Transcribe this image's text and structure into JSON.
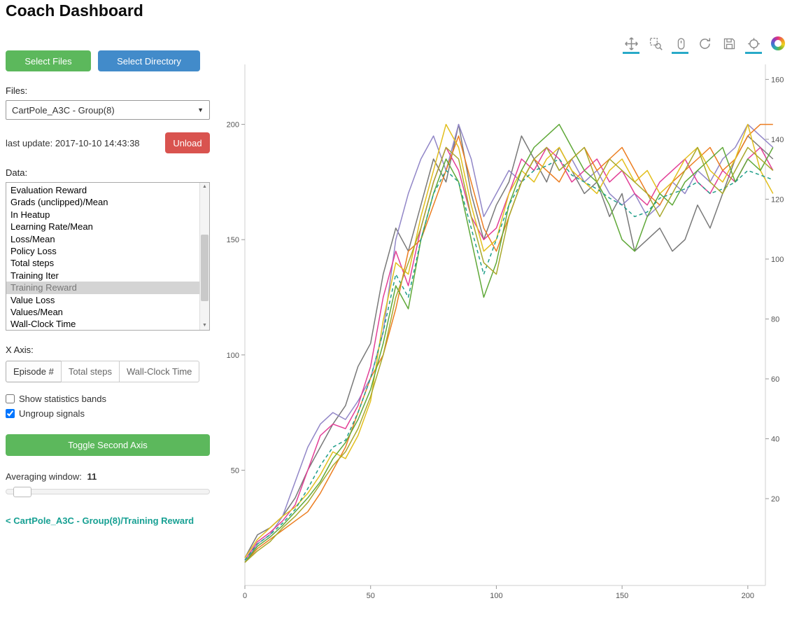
{
  "page": {
    "title": "Coach Dashboard"
  },
  "colors": {
    "green_button": "#5cb85c",
    "blue_button": "#428bca",
    "red_button": "#d9534f",
    "link_teal": "#17a093",
    "toolbar_active_underline": "#29aac8"
  },
  "sidebar": {
    "select_files_label": "Select Files",
    "select_directory_label": "Select Directory",
    "files_label": "Files:",
    "files_dropdown_value": "CartPole_A3C - Group(8)",
    "last_update_label": "last update: 2017-10-10 14:43:38",
    "unload_label": "Unload",
    "data_label": "Data:",
    "data_items": [
      "Evaluation Reward",
      "Grads (unclipped)/Mean",
      "In Heatup",
      "Learning Rate/Mean",
      "Loss/Mean",
      "Policy Loss",
      "Total steps",
      "Training Iter",
      "Training Reward",
      "Value Loss",
      "Values/Mean",
      "Wall-Clock Time"
    ],
    "selected_data_item": "Training Reward",
    "x_axis_label": "X Axis:",
    "x_axis_options": [
      "Episode #",
      "Total steps",
      "Wall-Clock Time"
    ],
    "x_axis_selected": "Episode #",
    "checkbox_stats_label": "Show statistics bands",
    "checkbox_stats_checked": false,
    "checkbox_ungroup_label": "Ungroup signals",
    "checkbox_ungroup_checked": true,
    "toggle_second_axis_label": "Toggle Second Axis",
    "averaging_window_label": "Averaging window:",
    "averaging_window_value": "11",
    "breadcrumb": "< CartPole_A3C - Group(8)/Training Reward"
  },
  "toolbar": {
    "tools": [
      {
        "name": "pan-tool",
        "active": true
      },
      {
        "name": "box-zoom-tool",
        "active": false
      },
      {
        "name": "wheel-zoom-tool",
        "active": true
      },
      {
        "name": "reset-tool",
        "active": false
      },
      {
        "name": "save-tool",
        "active": false
      },
      {
        "name": "hover-tool",
        "active": true
      },
      {
        "name": "bokeh-logo",
        "active": false
      }
    ]
  },
  "chart_data": {
    "type": "line",
    "title": "",
    "xlabel": "",
    "ylabel": "",
    "legend": "none",
    "grid": false,
    "xlim": [
      0,
      207
    ],
    "ylim": [
      0,
      226
    ],
    "y2lim": [
      -9,
      165
    ],
    "xticks": [
      0,
      50,
      100,
      150,
      200
    ],
    "yticks_left": [
      50,
      100,
      150,
      200
    ],
    "yticks_right": [
      20,
      40,
      60,
      80,
      100,
      120,
      140,
      160
    ],
    "x": [
      0,
      5,
      10,
      15,
      20,
      25,
      30,
      35,
      40,
      45,
      50,
      55,
      60,
      65,
      70,
      75,
      80,
      85,
      90,
      95,
      100,
      105,
      110,
      115,
      120,
      125,
      130,
      135,
      140,
      145,
      150,
      155,
      160,
      165,
      170,
      175,
      180,
      185,
      190,
      195,
      200,
      205,
      210
    ],
    "series": [
      {
        "name": "gray-line",
        "color": "#787878",
        "dash": false,
        "values": [
          12,
          22,
          25,
          30,
          38,
          50,
          60,
          70,
          78,
          95,
          105,
          135,
          155,
          145,
          165,
          185,
          175,
          200,
          170,
          150,
          165,
          175,
          195,
          185,
          175,
          190,
          180,
          170,
          175,
          160,
          170,
          145,
          150,
          155,
          145,
          150,
          165,
          155,
          170,
          185,
          195,
          190,
          185
        ]
      },
      {
        "name": "purple-line",
        "color": "#9186c7",
        "dash": false,
        "values": [
          10,
          18,
          22,
          30,
          45,
          60,
          70,
          75,
          72,
          80,
          90,
          110,
          150,
          170,
          185,
          195,
          180,
          200,
          185,
          160,
          170,
          180,
          175,
          185,
          190,
          180,
          185,
          175,
          180,
          170,
          165,
          170,
          160,
          165,
          175,
          170,
          180,
          175,
          185,
          190,
          200,
          195,
          190
        ]
      },
      {
        "name": "magenta-line",
        "color": "#e23e96",
        "dash": false,
        "values": [
          11,
          19,
          23,
          28,
          35,
          50,
          65,
          70,
          68,
          78,
          95,
          125,
          145,
          130,
          155,
          175,
          190,
          180,
          160,
          150,
          155,
          170,
          185,
          180,
          190,
          185,
          175,
          180,
          185,
          175,
          180,
          170,
          165,
          175,
          180,
          185,
          175,
          170,
          180,
          175,
          185,
          190,
          180
        ]
      },
      {
        "name": "orange-line",
        "color": "#ec7d20",
        "dash": false,
        "values": [
          10,
          16,
          20,
          24,
          28,
          32,
          40,
          50,
          60,
          75,
          90,
          100,
          120,
          145,
          150,
          165,
          180,
          195,
          175,
          155,
          145,
          160,
          175,
          185,
          180,
          175,
          185,
          190,
          180,
          185,
          190,
          180,
          170,
          165,
          175,
          180,
          185,
          190,
          180,
          185,
          195,
          200,
          200
        ]
      },
      {
        "name": "yellow-line",
        "color": "#e2bf1d",
        "dash": false,
        "values": [
          12,
          20,
          25,
          30,
          34,
          40,
          48,
          58,
          55,
          65,
          80,
          115,
          140,
          135,
          160,
          180,
          200,
          190,
          165,
          145,
          150,
          170,
          180,
          175,
          185,
          190,
          180,
          175,
          170,
          180,
          185,
          175,
          180,
          170,
          175,
          185,
          190,
          180,
          175,
          185,
          200,
          180,
          170
        ]
      },
      {
        "name": "green-line",
        "color": "#5fa838",
        "dash": false,
        "values": [
          10,
          17,
          21,
          26,
          32,
          38,
          45,
          55,
          62,
          72,
          85,
          105,
          130,
          120,
          150,
          170,
          185,
          175,
          150,
          125,
          140,
          165,
          180,
          190,
          195,
          200,
          190,
          180,
          175,
          165,
          150,
          145,
          160,
          170,
          165,
          175,
          180,
          185,
          190,
          175,
          185,
          180,
          190
        ]
      },
      {
        "name": "teal-dashed-line",
        "color": "#1f9e89",
        "dash": true,
        "values": [
          11,
          18,
          22,
          27,
          33,
          42,
          52,
          60,
          63,
          75,
          90,
          110,
          135,
          125,
          150,
          170,
          180,
          175,
          155,
          135,
          150,
          165,
          175,
          180,
          182,
          185,
          178,
          175,
          172,
          168,
          165,
          160,
          162,
          168,
          170,
          172,
          175,
          170,
          172,
          175,
          180,
          178,
          176
        ]
      },
      {
        "name": "olive-line",
        "color": "#a8a82c",
        "dash": false,
        "values": [
          10,
          15,
          19,
          25,
          30,
          36,
          44,
          52,
          58,
          68,
          82,
          100,
          125,
          140,
          155,
          175,
          190,
          185,
          160,
          140,
          135,
          160,
          175,
          185,
          190,
          180,
          185,
          190,
          175,
          185,
          180,
          175,
          170,
          160,
          170,
          180,
          190,
          175,
          170,
          180,
          190,
          185,
          180
        ]
      }
    ]
  }
}
